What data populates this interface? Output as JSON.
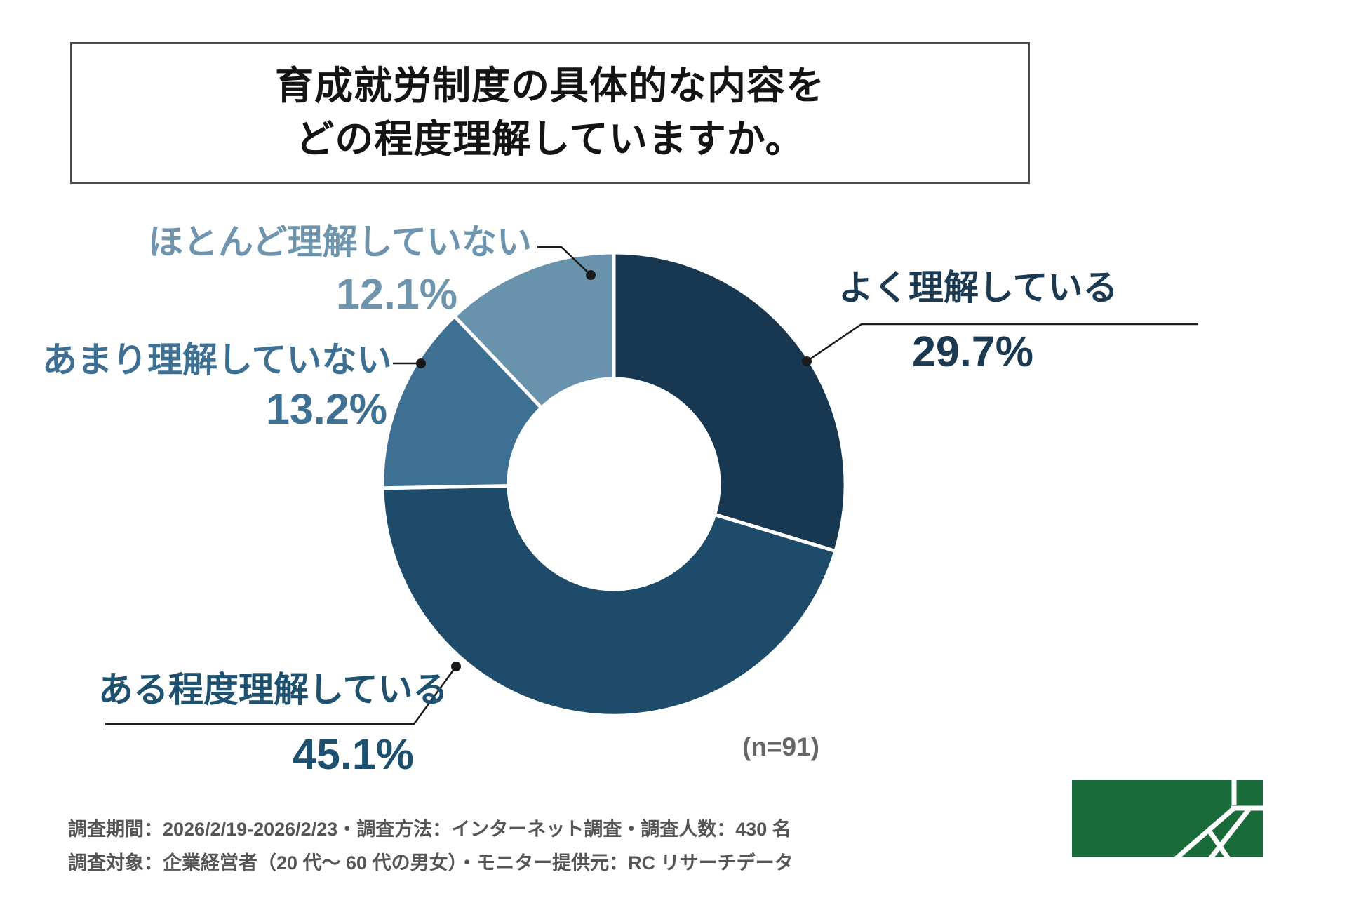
{
  "title": {
    "line1": "育成就労制度の具体的な内容を",
    "line2": "どの程度理解していますか。"
  },
  "chart_data": {
    "type": "pie",
    "donut": true,
    "start_angle_deg": 0,
    "direction": "clockwise",
    "sample_size": "(n=91)",
    "segments": [
      {
        "label": "よく理解している",
        "value": 29.7,
        "display": "29.7%",
        "color": "#173850"
      },
      {
        "label": "ある程度理解している",
        "value": 45.1,
        "display": "45.1%",
        "color": "#1D4B69"
      },
      {
        "label": "あまり理解していない",
        "value": 13.2,
        "display": "13.2%",
        "color": "#3D7092"
      },
      {
        "label": "ほとんど理解していない",
        "value": 12.1,
        "display": "12.1%",
        "color": "#6992AC"
      }
    ],
    "leader_line_color": "#1a1a1a",
    "hole_color": "#ffffff"
  },
  "footer": {
    "line1": "調査期間：2026/2/19-2026/2/23・調査方法：インターネット調査・調査人数：430 名",
    "line2": "調査対象：企業経営者（20 代〜 60 代の男女）・モニター提供元：RC リサーチデータ"
  },
  "logo": {
    "name": "green-geometric-logo",
    "color": "#1A6B3A",
    "line_color": "#ffffff"
  }
}
